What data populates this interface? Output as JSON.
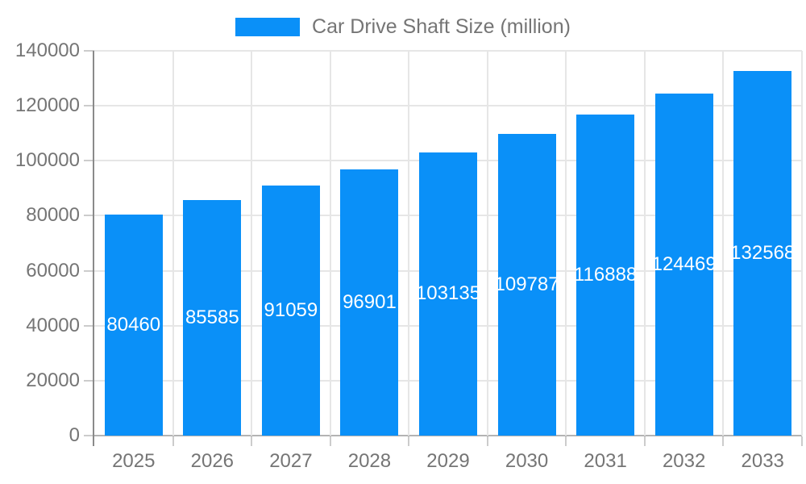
{
  "chart_data": {
    "type": "bar",
    "title": "Car Drive Shaft Size (million)",
    "categories": [
      "2025",
      "2026",
      "2027",
      "2028",
      "2029",
      "2030",
      "2031",
      "2032",
      "2033"
    ],
    "values": [
      80460,
      85585,
      91059,
      96901,
      103135,
      109787,
      116888,
      124469,
      132568
    ],
    "xlabel": "",
    "ylabel": "",
    "ylim": [
      0,
      140000
    ],
    "ytick_step": 20000,
    "grid": "on",
    "legend_position": "top-center",
    "value_labels": "centered-inside-bars",
    "colors": {
      "bar": "#0a90f8",
      "axis_text": "#757575",
      "title_text": "#757575",
      "grid_line": "#e6e6e6",
      "y_axis_line": "#8a8a8a",
      "x_axis_line": "#b3b3b3",
      "tick_mark": "#cccccc",
      "value_label": "#ffffff",
      "background": "#ffffff"
    }
  }
}
